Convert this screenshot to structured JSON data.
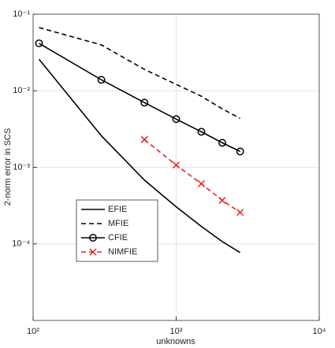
{
  "chart_data": {
    "type": "line",
    "xlabel": "unknowns",
    "ylabel": "2-norm error in SCS",
    "log_x": true,
    "log_y": true,
    "grid": true,
    "legend": "lower left",
    "xlim": [
      100,
      10000
    ],
    "ylim": [
      1e-05,
      0.1
    ],
    "xticks": [
      {
        "value": 100,
        "label": "10²"
      },
      {
        "value": 1000,
        "label": "10³"
      },
      {
        "value": 10000,
        "label": "10⁴"
      }
    ],
    "yticks": [
      {
        "value": 0.0001,
        "label": "10⁻⁴"
      },
      {
        "value": 0.001,
        "label": "10⁻³"
      },
      {
        "value": 0.01,
        "label": "10⁻²"
      },
      {
        "value": 0.1,
        "label": "10⁻¹"
      }
    ],
    "x": [
      110,
      300,
      600,
      1000,
      1500,
      2100,
      2800
    ],
    "series": [
      {
        "name": "EFIE",
        "color": "#000000",
        "line_style": "solid",
        "marker": "none",
        "values": [
          0.0258,
          0.00258,
          0.00068,
          0.000305,
          0.000169,
          0.000107,
          7.7e-05
        ]
      },
      {
        "name": "MFIE",
        "color": "#000000",
        "line_style": "dashed",
        "marker": "none",
        "values": [
          0.0668,
          0.0397,
          0.019,
          0.0121,
          0.00848,
          0.0058,
          0.00435
        ]
      },
      {
        "name": "CFIE",
        "color": "#000000",
        "line_style": "solid",
        "marker": "circle",
        "values": [
          0.0416,
          0.0139,
          0.007,
          0.00426,
          0.00291,
          0.00209,
          0.00161
        ]
      },
      {
        "name": "NIMFIE",
        "color": "#e8231f",
        "line_style": "dashed",
        "marker": "x",
        "values": [
          null,
          null,
          0.0023,
          0.00107,
          0.00061,
          0.00037,
          0.000258
        ]
      }
    ]
  }
}
